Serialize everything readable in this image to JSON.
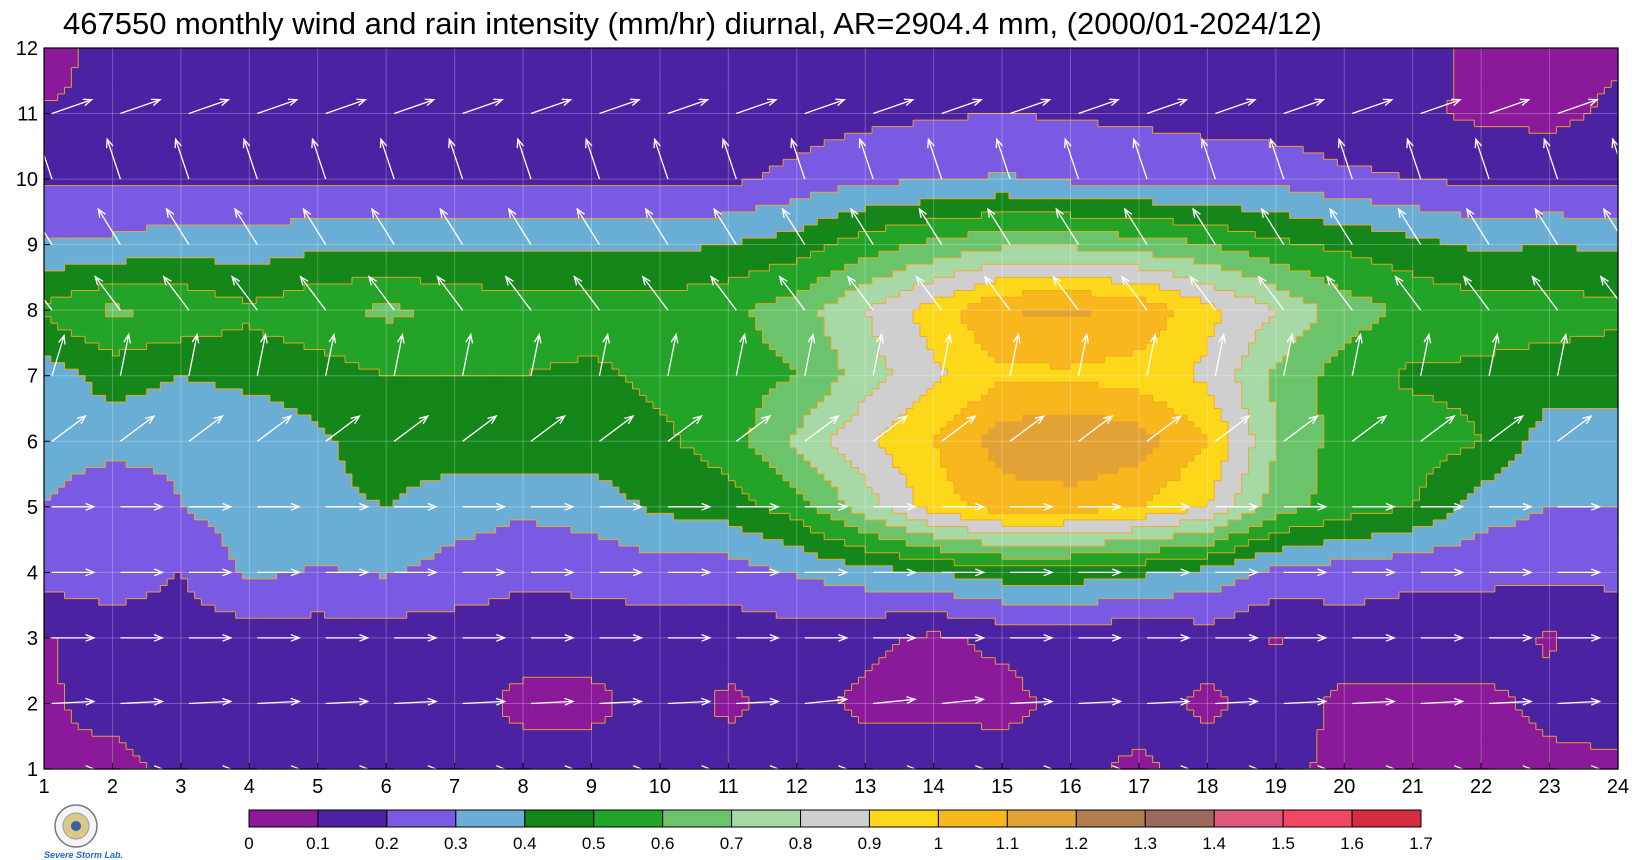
{
  "chart_data": {
    "type": "heatmap",
    "title": "467550 monthly wind and rain intensity (mm/hr) diurnal, AR=2904.4 mm, (2000/01-2024/12)",
    "x_ticks": [
      "1",
      "2",
      "3",
      "4",
      "5",
      "6",
      "7",
      "8",
      "9",
      "10",
      "11",
      "12",
      "13",
      "14",
      "15",
      "16",
      "17",
      "18",
      "19",
      "20",
      "21",
      "22",
      "23",
      "24"
    ],
    "y_ticks": [
      "1",
      "2",
      "3",
      "4",
      "5",
      "6",
      "7",
      "8",
      "9",
      "10",
      "11",
      "12"
    ],
    "xlim": [
      1,
      24
    ],
    "ylim": [
      1,
      12
    ],
    "x_values": [
      1,
      2,
      3,
      4,
      5,
      6,
      7,
      8,
      9,
      10,
      11,
      12,
      13,
      14,
      15,
      16,
      17,
      18,
      19,
      20,
      21,
      22,
      23,
      24
    ],
    "y_values": [
      1,
      2,
      3,
      4,
      5,
      6,
      7,
      8,
      9,
      10,
      11,
      12
    ],
    "z_grid": [
      [
        0.1,
        0.08,
        0.12,
        0.15,
        0.15,
        0.15,
        0.15,
        0.15,
        0.15,
        0.15,
        0.15,
        0.15,
        0.15,
        0.15,
        0.15,
        0.12,
        0.08,
        0.15,
        0.12,
        0.08,
        0.08,
        0.08,
        0.08,
        0.08
      ],
      [
        0.09,
        0.12,
        0.15,
        0.15,
        0.15,
        0.15,
        0.15,
        0.07,
        0.07,
        0.15,
        0.08,
        0.13,
        0.08,
        0.08,
        0.07,
        0.13,
        0.15,
        0.08,
        0.15,
        0.08,
        0.08,
        0.08,
        0.12,
        0.15
      ],
      [
        0.09,
        0.15,
        0.15,
        0.15,
        0.15,
        0.15,
        0.15,
        0.15,
        0.15,
        0.15,
        0.15,
        0.15,
        0.12,
        0.08,
        0.12,
        0.15,
        0.1,
        0.15,
        0.09,
        0.15,
        0.15,
        0.15,
        0.09,
        0.15
      ],
      [
        0.25,
        0.25,
        0.2,
        0.32,
        0.29,
        0.31,
        0.26,
        0.22,
        0.23,
        0.25,
        0.25,
        0.31,
        0.36,
        0.4,
        0.45,
        0.45,
        0.42,
        0.37,
        0.27,
        0.25,
        0.22,
        0.22,
        0.22,
        0.22
      ],
      [
        0.3,
        0.2,
        0.3,
        0.35,
        0.38,
        0.4,
        0.35,
        0.32,
        0.35,
        0.42,
        0.45,
        0.55,
        0.75,
        0.95,
        1.05,
        1.05,
        1.0,
        0.9,
        0.65,
        0.55,
        0.5,
        0.35,
        0.3,
        0.3
      ],
      [
        0.35,
        0.35,
        0.32,
        0.32,
        0.38,
        0.45,
        0.45,
        0.48,
        0.45,
        0.48,
        0.55,
        0.72,
        0.88,
        1.0,
        1.15,
        1.2,
        1.15,
        1.0,
        0.7,
        0.55,
        0.55,
        0.5,
        0.35,
        0.35
      ],
      [
        0.35,
        0.44,
        0.4,
        0.43,
        0.45,
        0.5,
        0.5,
        0.5,
        0.48,
        0.52,
        0.55,
        0.6,
        0.75,
        0.88,
        0.98,
        0.98,
        0.95,
        0.88,
        0.68,
        0.55,
        0.48,
        0.48,
        0.45,
        0.45
      ],
      [
        0.52,
        0.62,
        0.58,
        0.52,
        0.58,
        0.62,
        0.58,
        0.55,
        0.55,
        0.55,
        0.58,
        0.65,
        0.8,
        0.95,
        1.1,
        1.12,
        1.08,
        0.93,
        0.8,
        0.65,
        0.58,
        0.55,
        0.55,
        0.52
      ],
      [
        0.32,
        0.32,
        0.36,
        0.34,
        0.38,
        0.38,
        0.37,
        0.38,
        0.38,
        0.38,
        0.4,
        0.45,
        0.55,
        0.62,
        0.68,
        0.68,
        0.65,
        0.6,
        0.52,
        0.48,
        0.43,
        0.38,
        0.4,
        0.38
      ],
      [
        0.18,
        0.18,
        0.18,
        0.18,
        0.18,
        0.19,
        0.18,
        0.17,
        0.17,
        0.17,
        0.18,
        0.23,
        0.28,
        0.29,
        0.31,
        0.28,
        0.27,
        0.27,
        0.27,
        0.22,
        0.2,
        0.18,
        0.18,
        0.19
      ],
      [
        0.11,
        0.11,
        0.11,
        0.11,
        0.11,
        0.11,
        0.11,
        0.11,
        0.11,
        0.11,
        0.11,
        0.15,
        0.17,
        0.19,
        0.2,
        0.19,
        0.18,
        0.16,
        0.14,
        0.13,
        0.12,
        0.08,
        0.07,
        0.12
      ],
      [
        0.05,
        0.15,
        0.15,
        0.15,
        0.15,
        0.15,
        0.15,
        0.15,
        0.15,
        0.15,
        0.15,
        0.15,
        0.15,
        0.15,
        0.15,
        0.15,
        0.15,
        0.15,
        0.15,
        0.15,
        0.15,
        0.07,
        0.08,
        0.08
      ]
    ],
    "wind_u": [
      [
        1,
        1,
        1,
        1,
        1,
        1,
        1,
        1,
        1,
        1,
        1,
        1,
        1,
        1,
        1,
        1,
        1,
        1,
        1,
        1,
        1,
        1,
        1,
        1
      ],
      [
        1,
        1,
        1,
        1,
        1,
        1,
        1,
        1,
        1,
        1,
        1,
        1,
        1,
        1,
        1,
        1,
        1,
        1,
        1,
        1,
        1,
        1,
        1,
        1
      ],
      [
        1,
        1,
        1,
        1,
        1,
        1,
        1,
        1,
        1,
        1,
        1,
        1,
        1,
        1,
        1,
        1,
        1,
        1,
        1,
        1,
        1,
        1,
        1,
        1
      ],
      [
        1,
        1,
        1,
        1,
        1,
        1,
        1,
        1,
        1,
        1,
        1,
        1,
        1,
        1,
        1,
        1,
        1,
        1,
        1,
        1,
        1,
        1,
        1,
        1
      ],
      [
        1,
        1,
        1,
        1,
        1,
        1,
        1,
        1,
        1,
        1,
        1,
        1,
        1,
        1,
        1,
        1,
        1,
        1,
        1,
        1,
        1,
        1,
        1,
        1
      ],
      [
        0.8,
        0.8,
        0.8,
        0.8,
        0.8,
        0.8,
        0.8,
        0.8,
        0.8,
        0.8,
        0.8,
        0.8,
        0.8,
        0.8,
        0.8,
        0.8,
        0.8,
        0.8,
        0.8,
        0.8,
        0.8,
        0.8,
        0.8,
        0.8
      ],
      [
        0.3,
        0.2,
        0.2,
        0.2,
        0.2,
        0.2,
        0.2,
        0.2,
        0.2,
        0.2,
        0.2,
        0.2,
        0.2,
        0.2,
        0.2,
        0.2,
        0.2,
        0.2,
        0.2,
        0.2,
        0.2,
        0.2,
        0.2,
        0.2
      ],
      [
        -0.6,
        -0.6,
        -0.6,
        -0.6,
        -0.6,
        -0.6,
        -0.6,
        -0.6,
        -0.6,
        -0.6,
        -0.6,
        -0.6,
        -0.6,
        -0.6,
        -0.6,
        -0.6,
        -0.6,
        -0.6,
        -0.6,
        -0.6,
        -0.6,
        -0.6,
        -0.6,
        -0.6
      ],
      [
        -0.5,
        -0.5,
        -0.5,
        -0.5,
        -0.5,
        -0.5,
        -0.5,
        -0.5,
        -0.5,
        -0.5,
        -0.5,
        -0.5,
        -0.5,
        -0.5,
        -0.5,
        -0.5,
        -0.5,
        -0.5,
        -0.5,
        -0.5,
        -0.5,
        -0.5,
        -0.5,
        -0.5
      ],
      [
        -0.3,
        -0.3,
        -0.3,
        -0.3,
        -0.3,
        -0.3,
        -0.3,
        -0.3,
        -0.3,
        -0.3,
        -0.3,
        -0.3,
        -0.3,
        -0.3,
        -0.3,
        -0.3,
        -0.3,
        -0.3,
        -0.3,
        -0.3,
        -0.3,
        -0.3,
        -0.3,
        -0.3
      ],
      [
        1,
        1,
        1,
        1,
        1,
        1,
        1,
        1,
        1,
        1,
        1,
        1,
        1,
        1,
        1,
        1,
        1,
        1,
        1,
        1,
        1,
        1,
        1,
        1
      ],
      [
        0,
        0,
        0,
        0,
        0,
        0,
        0,
        0,
        0,
        0,
        0,
        0,
        0,
        0,
        0,
        0,
        0,
        0,
        0,
        0,
        0,
        0,
        0,
        0
      ]
    ],
    "wind_v": [
      [
        0,
        0,
        0,
        0,
        0,
        0,
        0,
        0,
        0,
        0,
        0,
        0,
        0,
        0,
        0,
        0,
        0,
        0,
        0,
        0,
        0,
        0,
        0,
        0
      ],
      [
        0.05,
        0.05,
        0.05,
        0.05,
        0.05,
        0.05,
        0.05,
        0.05,
        0.05,
        0.05,
        0.05,
        0.1,
        0.1,
        0.1,
        0.05,
        0.05,
        0.05,
        0.05,
        0.05,
        0.05,
        0.05,
        0.05,
        0.05,
        0.05
      ],
      [
        0,
        0,
        0,
        0,
        0,
        0,
        0,
        0,
        0,
        0,
        0,
        0,
        0,
        0,
        0,
        0,
        0,
        0,
        0,
        0,
        0,
        0,
        0,
        0
      ],
      [
        0,
        0,
        0,
        0,
        0,
        0,
        0,
        0,
        0,
        0,
        0,
        0,
        0,
        0,
        0,
        0,
        0,
        0,
        0,
        0,
        0,
        0,
        0,
        0
      ],
      [
        0,
        0,
        0,
        0,
        0,
        0,
        0,
        0,
        0,
        0,
        0,
        0,
        0,
        0,
        0,
        0,
        0,
        0,
        0,
        0,
        0,
        0,
        0,
        0
      ],
      [
        0.6,
        0.6,
        0.6,
        0.6,
        0.6,
        0.6,
        0.6,
        0.6,
        0.6,
        0.6,
        0.6,
        0.6,
        0.6,
        0.6,
        0.6,
        0.6,
        0.6,
        0.6,
        0.6,
        0.6,
        0.6,
        0.6,
        0.6,
        0.6
      ],
      [
        1,
        1,
        1,
        1,
        1,
        1,
        1,
        1,
        1,
        1,
        1,
        1,
        1,
        1,
        1,
        1,
        1,
        1,
        1,
        1,
        1,
        1,
        1,
        1
      ],
      [
        0.8,
        0.8,
        0.8,
        0.8,
        0.8,
        0.8,
        0.8,
        0.8,
        0.8,
        0.8,
        0.8,
        0.8,
        0.8,
        0.8,
        0.8,
        0.8,
        0.8,
        0.8,
        0.8,
        0.8,
        0.8,
        0.8,
        0.8,
        0.8
      ],
      [
        0.8,
        0.8,
        0.8,
        0.8,
        0.8,
        0.8,
        0.8,
        0.8,
        0.8,
        0.8,
        0.8,
        0.8,
        0.8,
        0.8,
        0.8,
        0.8,
        0.8,
        0.8,
        0.8,
        0.8,
        0.8,
        0.8,
        0.8,
        0.8
      ],
      [
        0.9,
        0.9,
        0.9,
        0.9,
        0.9,
        0.9,
        0.9,
        0.9,
        0.9,
        0.9,
        0.9,
        0.9,
        0.9,
        0.9,
        0.9,
        0.9,
        0.9,
        0.9,
        0.9,
        0.9,
        0.9,
        0.9,
        0.9,
        0.9
      ],
      [
        0.35,
        0.35,
        0.35,
        0.35,
        0.35,
        0.35,
        0.35,
        0.35,
        0.35,
        0.35,
        0.35,
        0.35,
        0.35,
        0.35,
        0.35,
        0.35,
        0.35,
        0.35,
        0.35,
        0.35,
        0.35,
        0.35,
        0.35,
        0.35
      ],
      [
        0,
        0,
        0,
        0,
        0,
        0,
        0,
        0,
        0,
        0,
        0,
        0,
        0,
        0,
        0,
        0,
        0,
        0,
        0,
        0,
        0,
        0,
        0,
        0
      ]
    ],
    "levels": [
      0,
      0.1,
      0.2,
      0.3,
      0.4,
      0.5,
      0.6,
      0.7,
      0.8,
      0.9,
      1,
      1.1,
      1.2,
      1.3,
      1.4,
      1.5,
      1.6,
      1.7
    ],
    "level_labels": [
      "0",
      "0.1",
      "0.2",
      "0.3",
      "0.4",
      "0.5",
      "0.6",
      "0.7",
      "0.8",
      "0.9",
      "1",
      "1.1",
      "1.2",
      "1.3",
      "1.4",
      "1.5",
      "1.6",
      "1.7"
    ],
    "colors": [
      "#8b1a9a",
      "#4b22a2",
      "#7a5ae2",
      "#6aaed6",
      "#15861a",
      "#23a327",
      "#6bc46b",
      "#a6d9a6",
      "#cfcfcf",
      "#fcd71a",
      "#f9b71e",
      "#e3a235",
      "#b07d4f",
      "#9b6a5b",
      "#e0577d",
      "#f24763",
      "#d72c40"
    ],
    "contour_color": "#f5a623",
    "grid": true
  },
  "logo": {
    "text": "Severe Storm Lab."
  }
}
